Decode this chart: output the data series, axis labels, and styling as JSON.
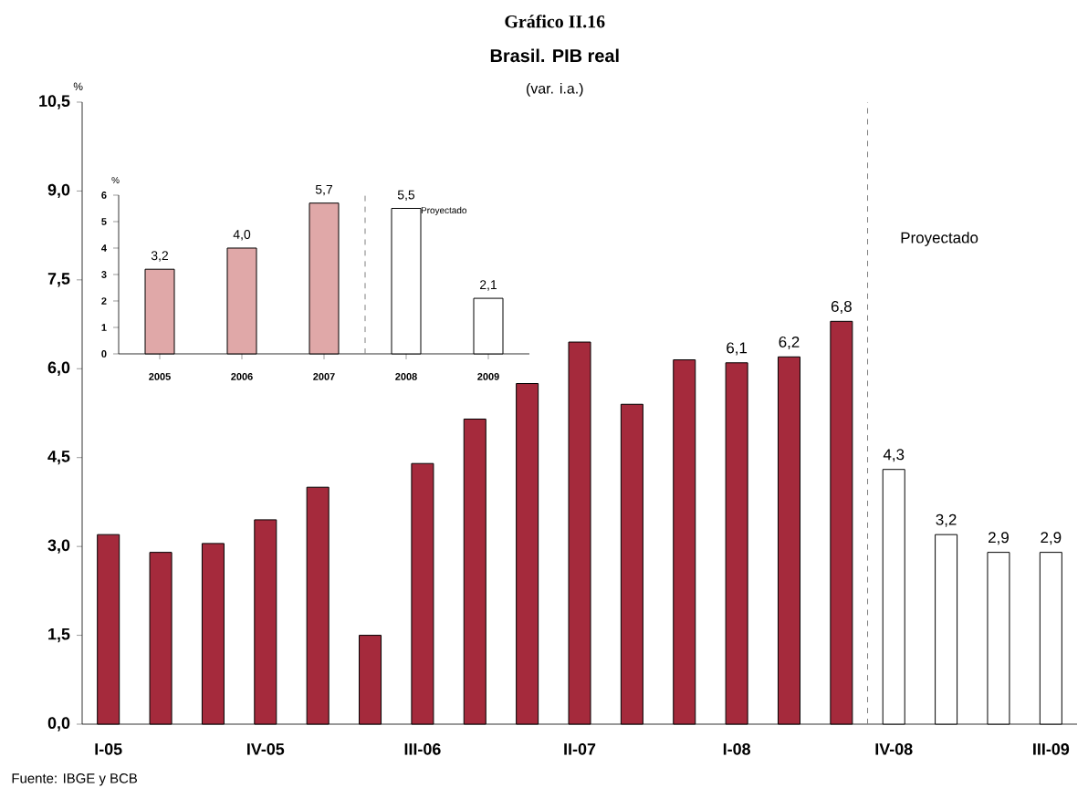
{
  "chart_data": [
    {
      "type": "bar",
      "title": "Gráfico II.16",
      "subtitle": "Brasil. PIB real",
      "ylabel": "%",
      "categories": [
        "I-05",
        null,
        null,
        "IV-05",
        null,
        null,
        "III-06",
        null,
        null,
        "II-07",
        null,
        null,
        "I-08",
        null,
        null,
        "IV-08",
        null,
        null,
        "III-09"
      ],
      "values": [
        3.2,
        2.9,
        3.05,
        3.45,
        4.0,
        1.5,
        4.4,
        5.15,
        5.75,
        6.45,
        5.4,
        6.15,
        6.1,
        6.2,
        6.8,
        4.3,
        3.2,
        2.9,
        2.9
      ],
      "colors": [
        "#a52a3c",
        "#a52a3c",
        "#a52a3c",
        "#a52a3c",
        "#a52a3c",
        "#a52a3c",
        "#a52a3c",
        "#a52a3c",
        "#a52a3c",
        "#a52a3c",
        "#a52a3c",
        "#a52a3c",
        "#a52a3c",
        "#a52a3c",
        "#a52a3c",
        "#ffffff",
        "#ffffff",
        "#ffffff",
        "#ffffff"
      ],
      "value_labels": [
        null,
        null,
        null,
        null,
        null,
        null,
        null,
        null,
        null,
        null,
        null,
        null,
        "6,1",
        "6,2",
        "6,8",
        "4,3",
        "3,2",
        "2,9",
        "2,9"
      ],
      "ylim": [
        0,
        10.5
      ],
      "yticks": [
        {
          "value": 0,
          "label": "0,0"
        },
        {
          "value": 1.5,
          "label": "1,5"
        },
        {
          "value": 3,
          "label": "3,0"
        },
        {
          "value": 4.5,
          "label": "4,5"
        },
        {
          "value": 6,
          "label": "6,0"
        },
        {
          "value": 7.5,
          "label": "7,5"
        },
        {
          "value": 9,
          "label": "9,0"
        },
        {
          "value": 10.5,
          "label": "10,5"
        }
      ],
      "annotations": [
        "(var. i.a.)",
        "Fuente: IBGE y BCB",
        "Proyectado"
      ]
    },
    {
      "type": "bar",
      "ylabel": "%",
      "categories": [
        "2005",
        "2006",
        "2007",
        "2008",
        "2009"
      ],
      "values": [
        3.2,
        4.0,
        5.7,
        5.5,
        2.1
      ],
      "colors": [
        "#e0a8a8",
        "#e0a8a8",
        "#e0a8a8",
        "#ffffff",
        "#ffffff"
      ],
      "value_labels": [
        "3,2",
        "4,0",
        "5,7",
        "5,5",
        "2,1"
      ],
      "ylim": [
        0,
        6
      ],
      "yticks": [
        0,
        1,
        2,
        3,
        4,
        5,
        6
      ],
      "annotations": [
        "Proyectado"
      ]
    }
  ]
}
